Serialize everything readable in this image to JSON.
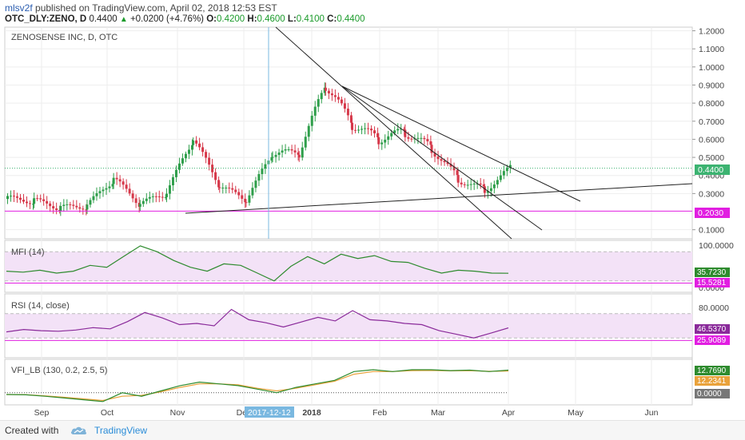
{
  "header": {
    "author": "mlsv2f",
    "published_text": "published on TradingView.com, April 02, 2018 12:53 EST",
    "symbol": "OTC_DLY:ZENO, D",
    "price": "0.4400",
    "change": "+0.0200 (+4.76%)",
    "o_label": "O:",
    "o_value": "0.4200",
    "h_label": "H:",
    "h_value": "0.4600",
    "l_label": "L:",
    "l_value": "0.4100",
    "c_label": "C:",
    "c_value": "0.4400"
  },
  "footer": {
    "created_with": "Created with",
    "brand": "TradingView"
  },
  "colors": {
    "up": "#2e9e4a",
    "down": "#d6384a",
    "magenta": "#e11ee1",
    "green_line": "#2e8b2e",
    "orange_line": "#e9a23b",
    "purple_line": "#8a2a9a",
    "crosshair": "#7ab8e0",
    "price_tag": "#3cb371",
    "grid": "#eeeeee"
  },
  "chart_data": {
    "type": "candlestick",
    "title": "ZENOSENSE INC, D, OTC",
    "x_labels": [
      "Sep",
      "Oct",
      "Nov",
      "Dec",
      "2018",
      "Feb",
      "Mar",
      "Apr",
      "May",
      "Jun"
    ],
    "crosshair_date": "2017-12-12",
    "price_axis": {
      "ticks": [
        "1.2000",
        "1.1000",
        "1.0000",
        "0.9000",
        "0.8000",
        "0.7000",
        "0.6000",
        "0.5000",
        "0.4000",
        "0.3000",
        "0.1000"
      ],
      "ylim": [
        0.05,
        1.22
      ],
      "last_price": "0.4400",
      "support_level": "0.2030"
    },
    "price_series": [
      {
        "date": "Sep",
        "close": 0.27
      },
      {
        "date": "mid-Sep",
        "close": 0.26
      },
      {
        "date": "Oct",
        "close": 0.22
      },
      {
        "date": "mid-Oct",
        "close": 0.23
      },
      {
        "date": "late-Oct",
        "close": 0.38
      },
      {
        "date": "Nov",
        "close": 0.24
      },
      {
        "date": "mid-Nov",
        "close": 0.3
      },
      {
        "date": "late-Nov",
        "close": 0.6
      },
      {
        "date": "Dec",
        "close": 0.34
      },
      {
        "date": "2017-12-12",
        "close": 0.26
      },
      {
        "date": "late-Dec",
        "close": 0.52
      },
      {
        "date": "2018",
        "close": 0.52
      },
      {
        "date": "mid-Jan",
        "close": 0.9
      },
      {
        "date": "late-Jan",
        "close": 0.68
      },
      {
        "date": "Feb",
        "close": 0.6
      },
      {
        "date": "mid-Feb",
        "close": 0.64
      },
      {
        "date": "Mar",
        "close": 0.55
      },
      {
        "date": "mid-Mar",
        "close": 0.38
      },
      {
        "date": "late-Mar",
        "close": 0.32
      },
      {
        "date": "Apr",
        "close": 0.44
      }
    ],
    "indicators": [
      {
        "name": "MFI (14)",
        "ticks": [
          "100.0000",
          "0.0000"
        ],
        "levels": [
          "35.7230",
          "15.5281"
        ],
        "ylim": [
          0,
          100
        ],
        "values": [
          40,
          38,
          42,
          36,
          40,
          52,
          48,
          70,
          92,
          80,
          62,
          48,
          40,
          55,
          52,
          36,
          20,
          50,
          70,
          55,
          75,
          66,
          72,
          60,
          58,
          46,
          36,
          42,
          40,
          36,
          35.72
        ]
      },
      {
        "name": "RSI (14, close)",
        "ticks": [
          "80.0000"
        ],
        "levels": [
          "46.5370",
          "25.9089"
        ],
        "ylim": [
          0,
          100
        ],
        "values": [
          40,
          44,
          42,
          41,
          43,
          47,
          45,
          57,
          72,
          63,
          52,
          54,
          50,
          77,
          60,
          55,
          48,
          56,
          64,
          58,
          75,
          60,
          58,
          54,
          52,
          42,
          36,
          30,
          38,
          46.54
        ]
      },
      {
        "name": "VFI_LB (130, 0.2, 2.5, 5)",
        "levels": [
          "12.7690",
          "12.2341",
          "0.0000"
        ],
        "ylim": [
          -6,
          18
        ],
        "vfi": [
          -1,
          -1.2,
          -2,
          -3,
          -4,
          -5,
          0,
          -2,
          1,
          4,
          6,
          5,
          4,
          2,
          0,
          3,
          5,
          7,
          12,
          13,
          12,
          13,
          13,
          12.5,
          12.8,
          12,
          12.77
        ],
        "signal": [
          -1,
          -1.1,
          -1.8,
          -2.6,
          -3.5,
          -4.4,
          -2,
          -1.5,
          0.5,
          3,
          5,
          5,
          4.5,
          2.5,
          1,
          2.5,
          4.5,
          6.5,
          10.5,
          12,
          12,
          12.5,
          12.6,
          12.4,
          12.5,
          12.1,
          12.23
        ]
      }
    ]
  }
}
